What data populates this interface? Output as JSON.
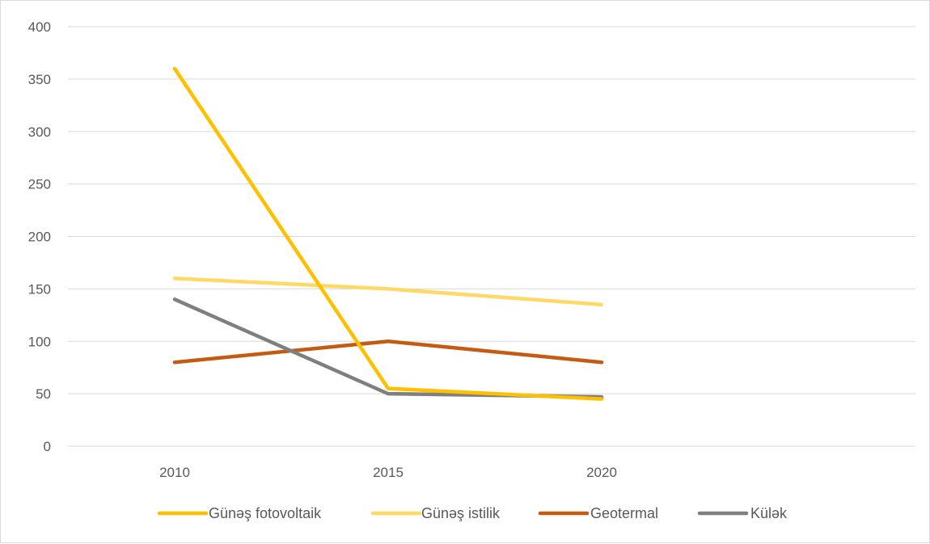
{
  "chart_data": {
    "type": "line",
    "title": "",
    "xlabel": "",
    "ylabel": "",
    "categories": [
      "2010",
      "2015",
      "2020"
    ],
    "ylim": [
      0,
      400
    ],
    "yticks": [
      0,
      50,
      100,
      150,
      200,
      250,
      300,
      350,
      400
    ],
    "grid": true,
    "legend_position": "bottom",
    "series": [
      {
        "name": "Günəş fotovoltaik",
        "color": "#FFC000",
        "values": [
          360,
          55,
          45
        ]
      },
      {
        "name": "Günəş istilik",
        "color": "#FFD966",
        "values": [
          160,
          150,
          135
        ]
      },
      {
        "name": "Geotermal",
        "color": "#C55A11",
        "values": [
          80,
          100,
          80
        ]
      },
      {
        "name": "Külək",
        "color": "#7F7F7F",
        "values": [
          140,
          50,
          47
        ]
      }
    ]
  }
}
